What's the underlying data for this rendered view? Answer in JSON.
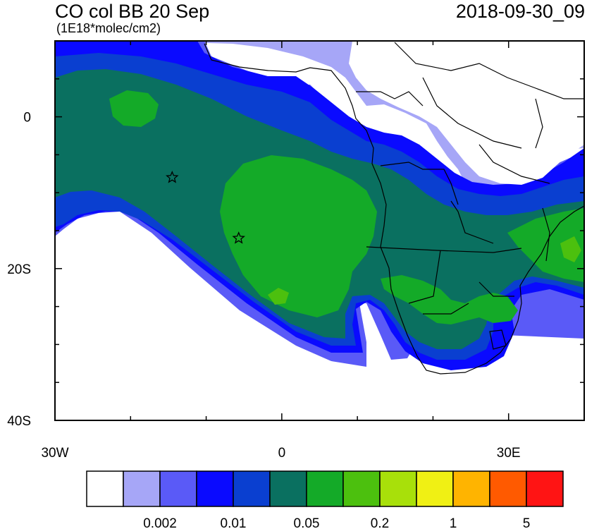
{
  "header": {
    "title": "CO col BB 20 Sep",
    "units": "(1E18*molec/cm2)",
    "timestamp": "2018-09-30_09"
  },
  "axes": {
    "y_labels": [
      {
        "text": "0",
        "lat": 0
      },
      {
        "text": "20S",
        "lat": -20
      },
      {
        "text": "40S",
        "lat": -40
      }
    ],
    "x_labels": [
      {
        "text": "30W",
        "lon": -30
      },
      {
        "text": "0",
        "lon": 0
      },
      {
        "text": "30E",
        "lon": 30
      }
    ],
    "extent": {
      "lon_min": -30,
      "lon_max": 40,
      "lat_min": -40,
      "lat_max": 10
    }
  },
  "markers": [
    {
      "name": "star-marker-st-helena-region",
      "lon": -14.5,
      "lat": -8
    },
    {
      "name": "star-marker-offshore",
      "lon": -5.7,
      "lat": -16
    }
  ],
  "colorbar": {
    "colors": [
      "#ffffff",
      "#a6a6f7",
      "#5a5af7",
      "#0a0aff",
      "#0a3fd0",
      "#0a7060",
      "#14aa28",
      "#4cc00e",
      "#a8e00a",
      "#f0f014",
      "#ffb400",
      "#ff5a00",
      "#ff1414"
    ],
    "labels": [
      {
        "text": "0.002",
        "boundary": 2
      },
      {
        "text": "0.01",
        "boundary": 4
      },
      {
        "text": "0.05",
        "boundary": 6
      },
      {
        "text": "0.2",
        "boundary": 8
      },
      {
        "text": "1",
        "boundary": 10
      },
      {
        "text": "5",
        "boundary": 12
      }
    ]
  }
}
